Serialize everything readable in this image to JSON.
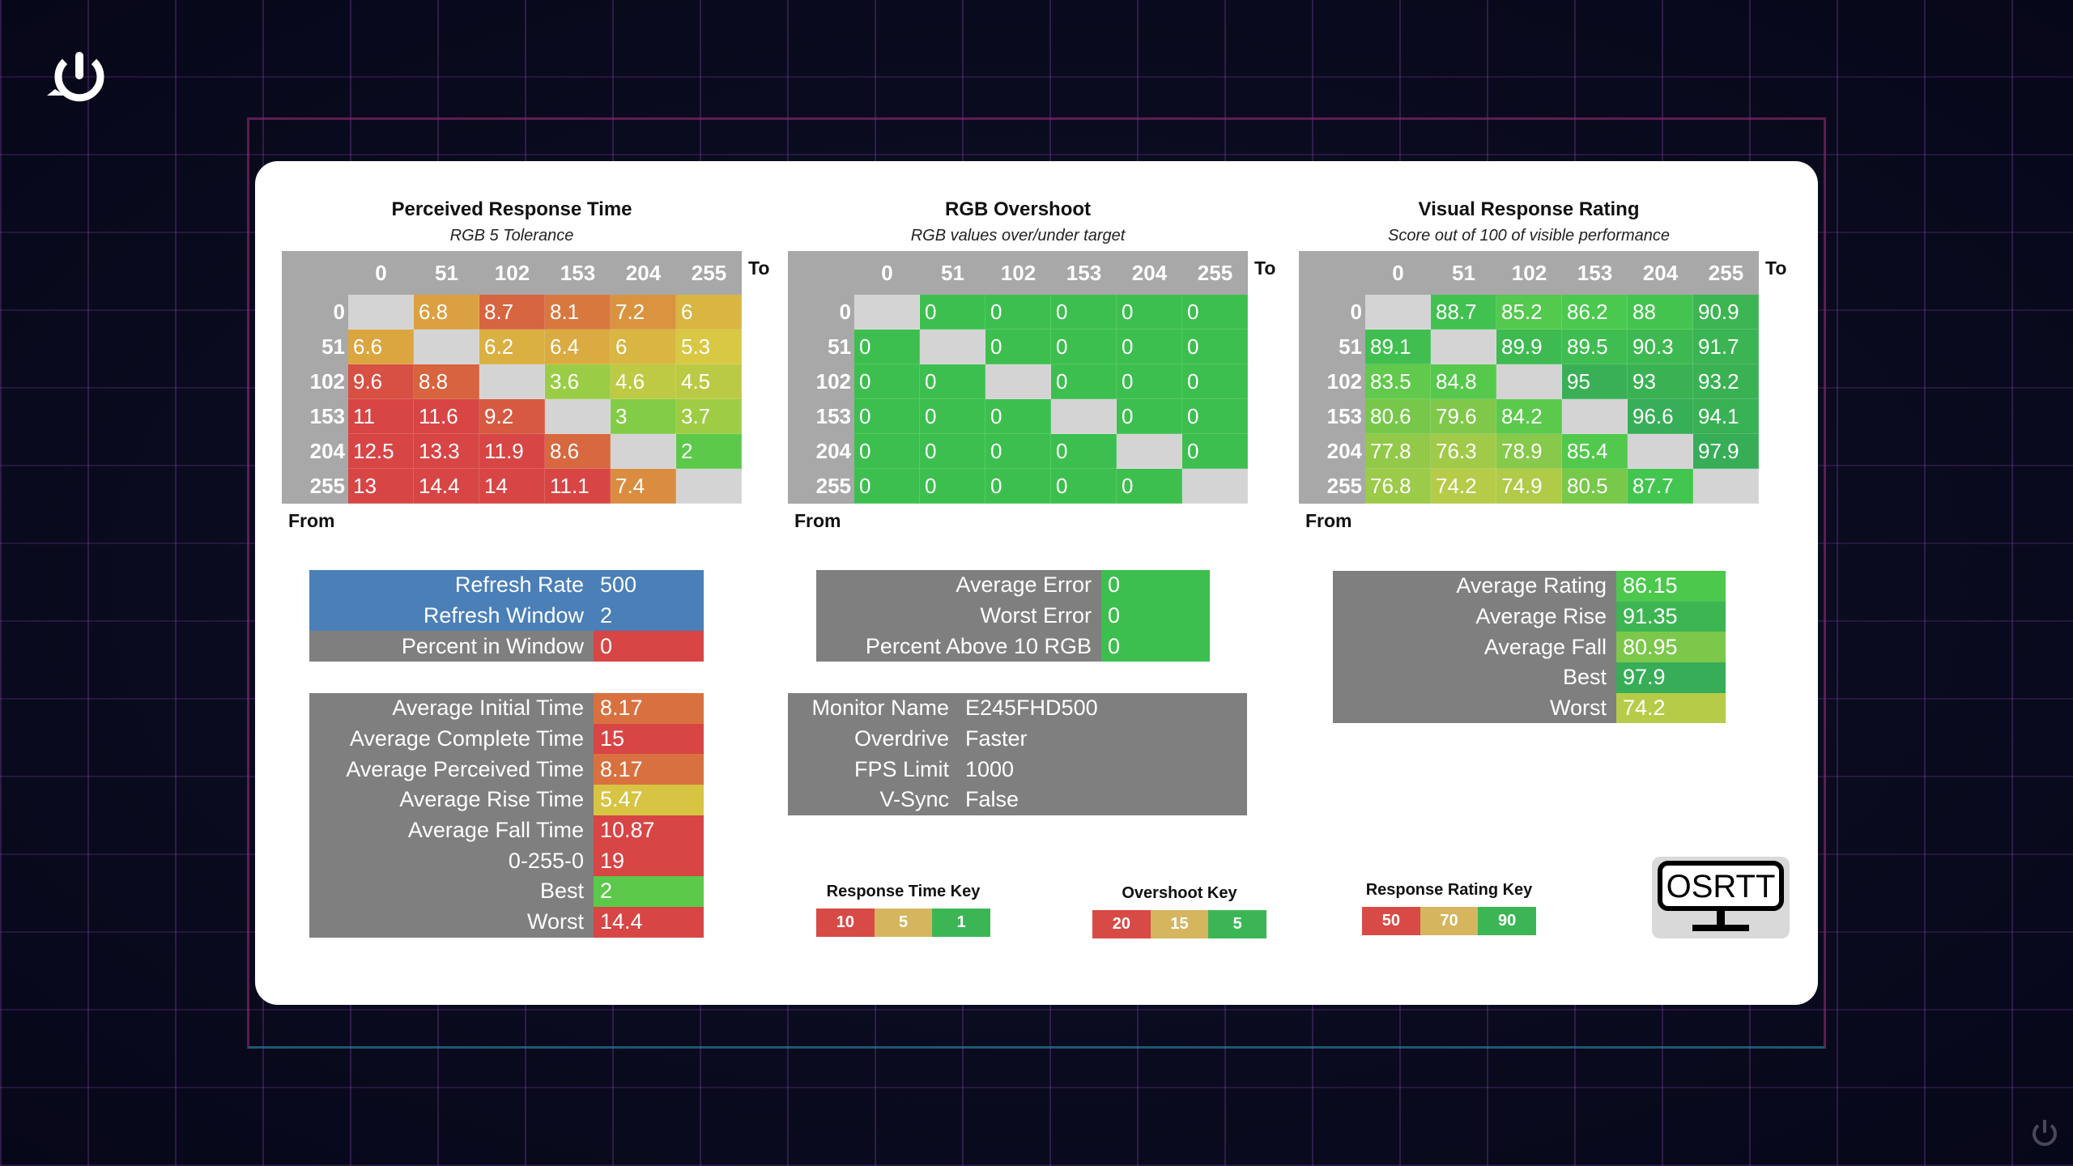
{
  "logo_text": "OSRTT",
  "headers": [
    "0",
    "51",
    "102",
    "153",
    "204",
    "255"
  ],
  "axis": {
    "to": "To",
    "from": "From"
  },
  "tables": [
    {
      "title": "Perceived Response Time",
      "subtitle": "RGB 5 Tolerance",
      "scale": "rt",
      "rows": [
        [
          null,
          "6.8",
          "8.7",
          "8.1",
          "7.2",
          "6"
        ],
        [
          "6.6",
          null,
          "6.2",
          "6.4",
          "6",
          "5.3"
        ],
        [
          "9.6",
          "8.8",
          null,
          "3.6",
          "4.6",
          "4.5"
        ],
        [
          "11",
          "11.6",
          "9.2",
          null,
          "3",
          "3.7"
        ],
        [
          "12.5",
          "13.3",
          "11.9",
          "8.6",
          null,
          "2"
        ],
        [
          "13",
          "14.4",
          "14",
          "11.1",
          "7.4",
          null
        ]
      ]
    },
    {
      "title": "RGB Overshoot",
      "subtitle": "RGB values over/under target",
      "scale": "os",
      "rows": [
        [
          null,
          "0",
          "0",
          "0",
          "0",
          "0"
        ],
        [
          "0",
          null,
          "0",
          "0",
          "0",
          "0"
        ],
        [
          "0",
          "0",
          null,
          "0",
          "0",
          "0"
        ],
        [
          "0",
          "0",
          "0",
          null,
          "0",
          "0"
        ],
        [
          "0",
          "0",
          "0",
          "0",
          null,
          "0"
        ],
        [
          "0",
          "0",
          "0",
          "0",
          "0",
          null
        ]
      ]
    },
    {
      "title": "Visual Response Rating",
      "subtitle": "Score out of 100 of visible performance",
      "scale": "vr",
      "rows": [
        [
          null,
          "88.7",
          "85.2",
          "86.2",
          "88",
          "90.9"
        ],
        [
          "89.1",
          null,
          "89.9",
          "89.5",
          "90.3",
          "91.7"
        ],
        [
          "83.5",
          "84.8",
          null,
          "95",
          "93",
          "93.2"
        ],
        [
          "80.6",
          "79.6",
          "84.2",
          null,
          "96.6",
          "94.1"
        ],
        [
          "77.8",
          "76.3",
          "78.9",
          "85.4",
          null,
          "97.9"
        ],
        [
          "76.8",
          "74.2",
          "74.9",
          "80.5",
          "87.7",
          null
        ]
      ]
    }
  ],
  "refresh": [
    {
      "label": "Refresh Rate",
      "value": "500",
      "lbg": "#4a7fb8",
      "vbg": "#4a7fb8"
    },
    {
      "label": "Refresh Window",
      "value": "2",
      "lbg": "#4a7fb8",
      "vbg": "#4a7fb8"
    },
    {
      "label": "Percent in Window",
      "value": "0",
      "lbg": "#7f7f7f",
      "vbg": "#d84545"
    }
  ],
  "rt_stats": [
    {
      "label": "Average Initial Time",
      "value": "8.17",
      "vbg": "#d8713f"
    },
    {
      "label": "Average Complete Time",
      "value": "15",
      "vbg": "#d84545"
    },
    {
      "label": "Average Perceived Time",
      "value": "8.17",
      "vbg": "#d8713f"
    },
    {
      "label": "Average Rise Time",
      "value": "5.47",
      "vbg": "#d8c443"
    },
    {
      "label": "Average Fall Time",
      "value": "10.87",
      "vbg": "#d84545"
    },
    {
      "label": "0-255-0",
      "value": "19",
      "vbg": "#d84545"
    },
    {
      "label": "Best",
      "value": "2",
      "vbg": "#5cc94a"
    },
    {
      "label": "Worst",
      "value": "14.4",
      "vbg": "#d84545"
    }
  ],
  "os_stats": [
    {
      "label": "Average Error",
      "value": "0",
      "vbg": "#3cbf4e"
    },
    {
      "label": "Worst Error",
      "value": "0",
      "vbg": "#3cbf4e"
    },
    {
      "label": "Percent Above 10 RGB",
      "value": "0",
      "vbg": "#3cbf4e"
    }
  ],
  "monitor": [
    {
      "label": "Monitor Name",
      "value": "E245FHD500"
    },
    {
      "label": "Overdrive",
      "value": "Faster"
    },
    {
      "label": "FPS Limit",
      "value": "1000"
    },
    {
      "label": "V-Sync",
      "value": "False"
    }
  ],
  "vr_stats": [
    {
      "label": "Average Rating",
      "value": "86.15",
      "vbg": "#4cc84d"
    },
    {
      "label": "Average Rise",
      "value": "91.35",
      "vbg": "#3cb552"
    },
    {
      "label": "Average Fall",
      "value": "80.95",
      "vbg": "#7cc84a"
    },
    {
      "label": "Best",
      "value": "97.9",
      "vbg": "#37ad58"
    },
    {
      "label": "Worst",
      "value": "74.2",
      "vbg": "#b6cc48"
    }
  ],
  "keys": [
    {
      "title": "Response Time Key",
      "values": [
        "10",
        "5",
        "1"
      ]
    },
    {
      "title": "Overshoot Key",
      "values": [
        "20",
        "15",
        "5"
      ]
    },
    {
      "title": "Response Rating Key",
      "values": [
        "50",
        "70",
        "90"
      ]
    }
  ],
  "key_colors": [
    "#d84a45",
    "#d6b55f",
    "#3cb655"
  ]
}
